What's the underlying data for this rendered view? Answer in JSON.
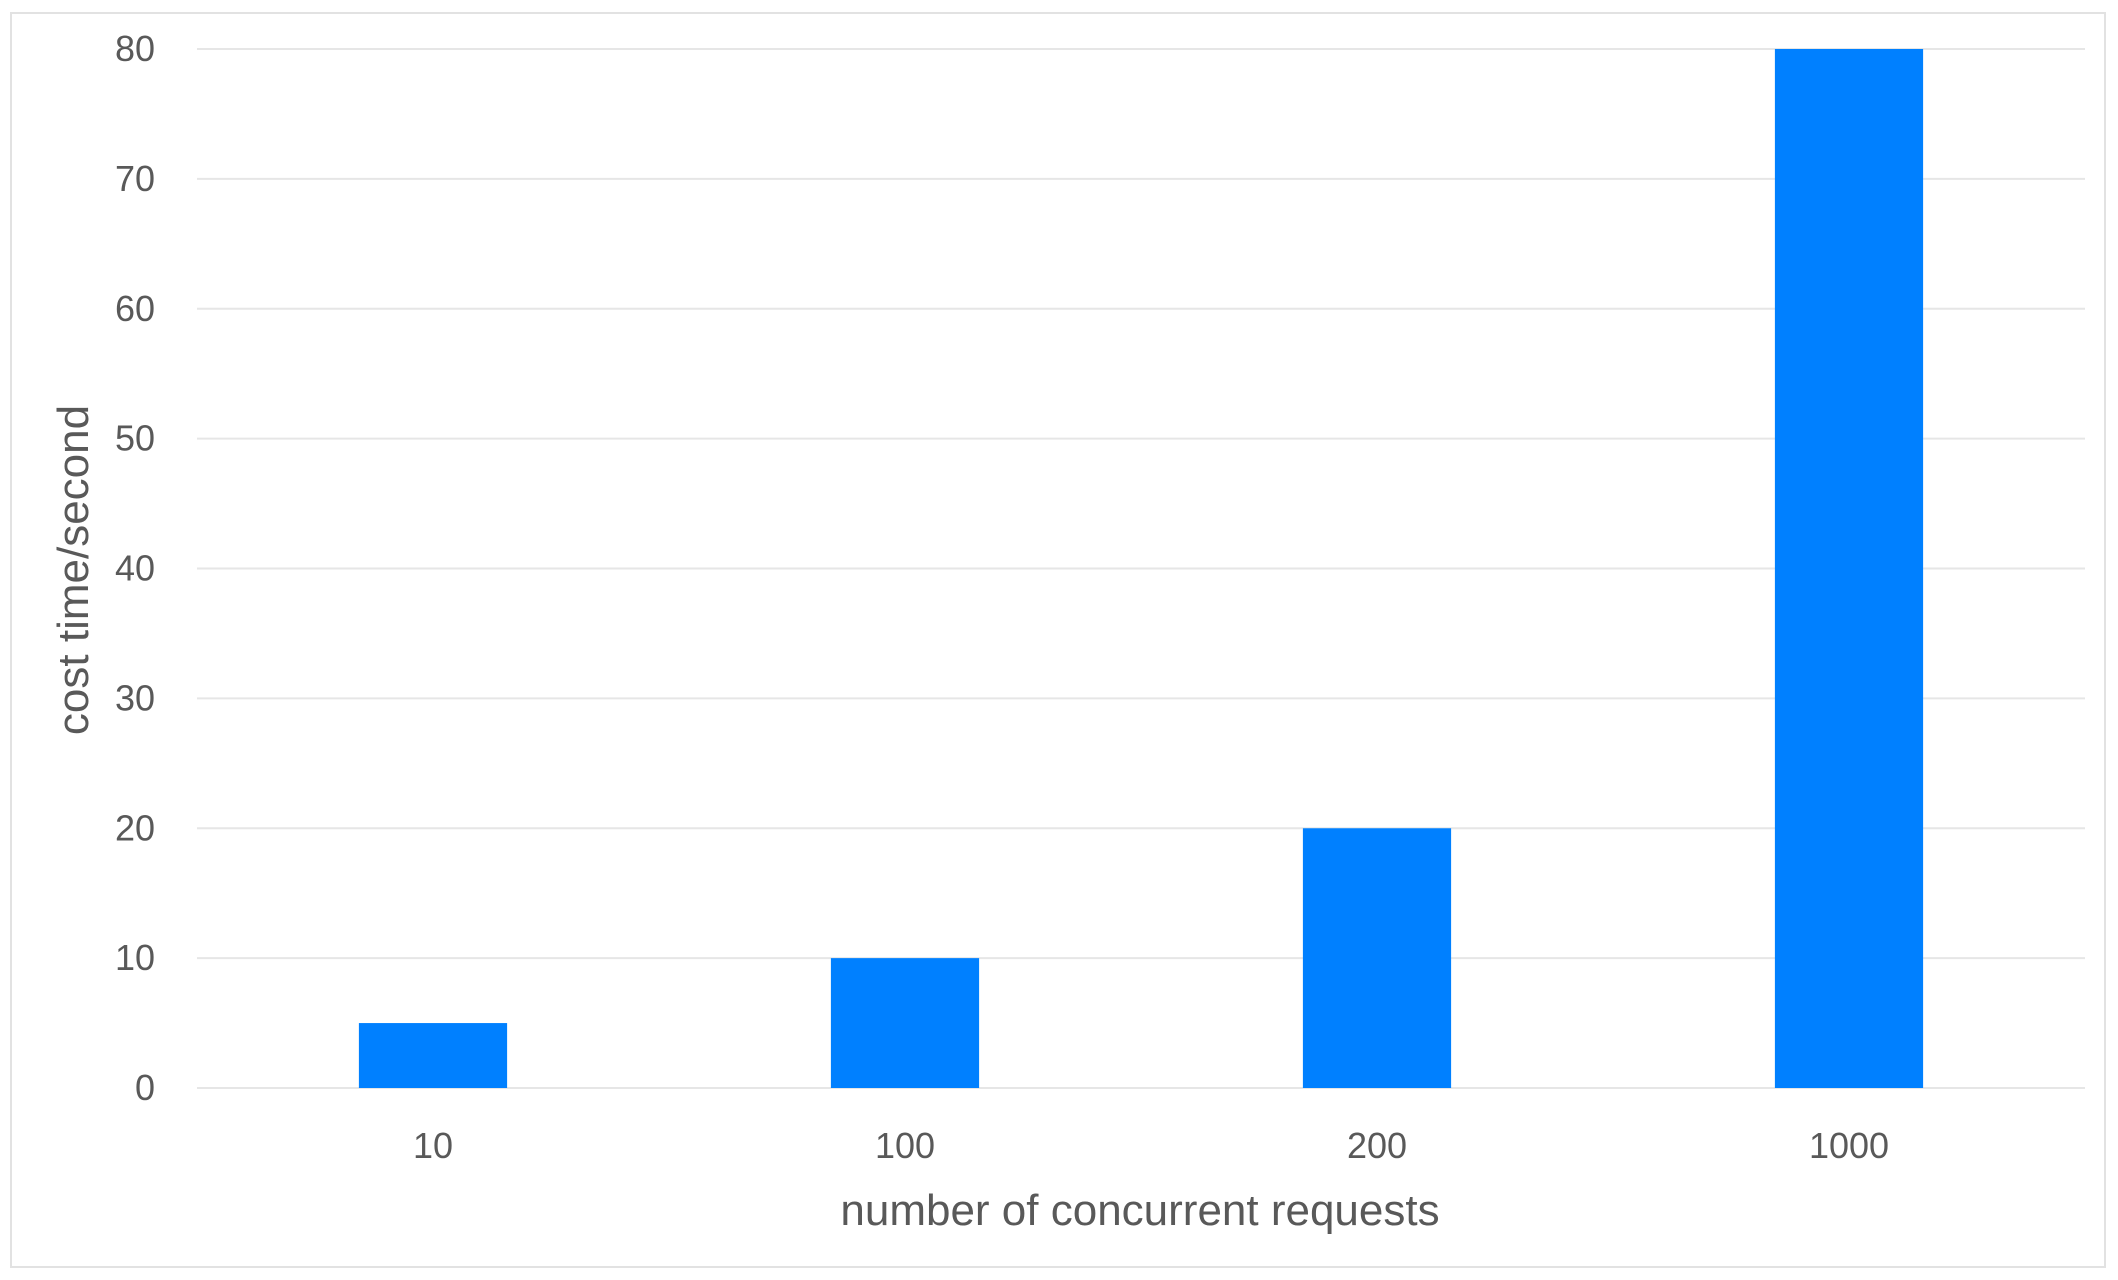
{
  "chart_data": {
    "type": "bar",
    "title": "",
    "categories": [
      "10",
      "100",
      "200",
      "1000"
    ],
    "values": [
      5,
      10,
      20,
      80
    ],
    "xlabel": "number of concurrent requests",
    "ylabel": "cost time/second",
    "ylim": [
      0,
      80
    ],
    "yticks": [
      0,
      10,
      20,
      30,
      40,
      50,
      60,
      70,
      80
    ],
    "grid": true,
    "legend": "none",
    "bar_color": "#0080FF",
    "gridline_color": "#e6e6e6",
    "text_color": "#595959"
  }
}
